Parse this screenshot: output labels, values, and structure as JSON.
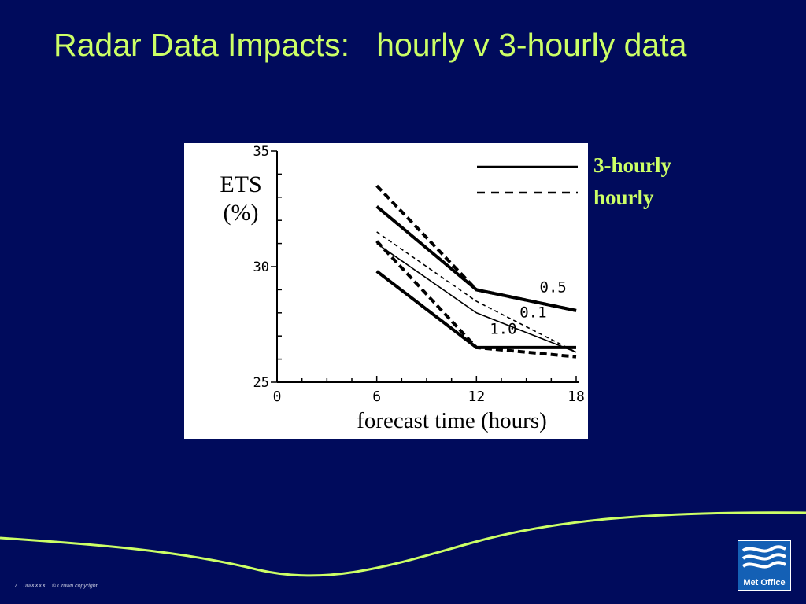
{
  "slide": {
    "title": "Radar Data Impacts:   hourly v 3-hourly data",
    "footer": "7    00/XXXX    © Crown copyright",
    "logo_text": "Met Office"
  },
  "colors": {
    "background": "#000b5c",
    "accent": "#ccff66",
    "logo": "#1460b5"
  },
  "icons": [
    "met-office-waves-icon"
  ],
  "chart_data": {
    "type": "line",
    "ylabel_line1": "ETS",
    "ylabel_line2": "(%)",
    "xlabel": "forecast time  (hours)",
    "xlim": [
      0,
      18
    ],
    "ylim": [
      25,
      35
    ],
    "x_ticks": [
      "0",
      "6",
      "12",
      "18"
    ],
    "y_ticks": [
      "25",
      "30",
      "35"
    ],
    "legend": [
      {
        "label": "3-hourly",
        "style": "solid"
      },
      {
        "label": "hourly",
        "style": "dashed"
      }
    ],
    "series": [
      {
        "threshold": "0.5",
        "style": "solid",
        "weight": "heavy",
        "x": [
          6,
          12,
          18
        ],
        "y": [
          32.6,
          29.0,
          28.1
        ]
      },
      {
        "threshold": "0.5",
        "style": "dashed",
        "weight": "heavy",
        "x": [
          6,
          12,
          18
        ],
        "y": [
          33.5,
          29.0,
          28.1
        ]
      },
      {
        "threshold": "0.1",
        "style": "solid",
        "weight": "light",
        "x": [
          6,
          12,
          18
        ],
        "y": [
          31.0,
          28.0,
          26.3
        ]
      },
      {
        "threshold": "0.1",
        "style": "dashed",
        "weight": "light",
        "x": [
          6,
          12,
          18
        ],
        "y": [
          31.5,
          28.5,
          26.3
        ]
      },
      {
        "threshold": "1.0",
        "style": "solid",
        "weight": "heavy",
        "x": [
          6,
          12,
          18
        ],
        "y": [
          29.8,
          26.5,
          26.5
        ]
      },
      {
        "threshold": "1.0",
        "style": "dashed",
        "weight": "heavy",
        "x": [
          6,
          12,
          18
        ],
        "y": [
          31.1,
          26.5,
          26.1
        ]
      }
    ],
    "annotations": [
      {
        "text": "0.5",
        "x": 15.8,
        "y": 28.9
      },
      {
        "text": "0.1",
        "x": 14.6,
        "y": 27.8
      },
      {
        "text": "1.0",
        "x": 12.8,
        "y": 27.1
      }
    ]
  }
}
